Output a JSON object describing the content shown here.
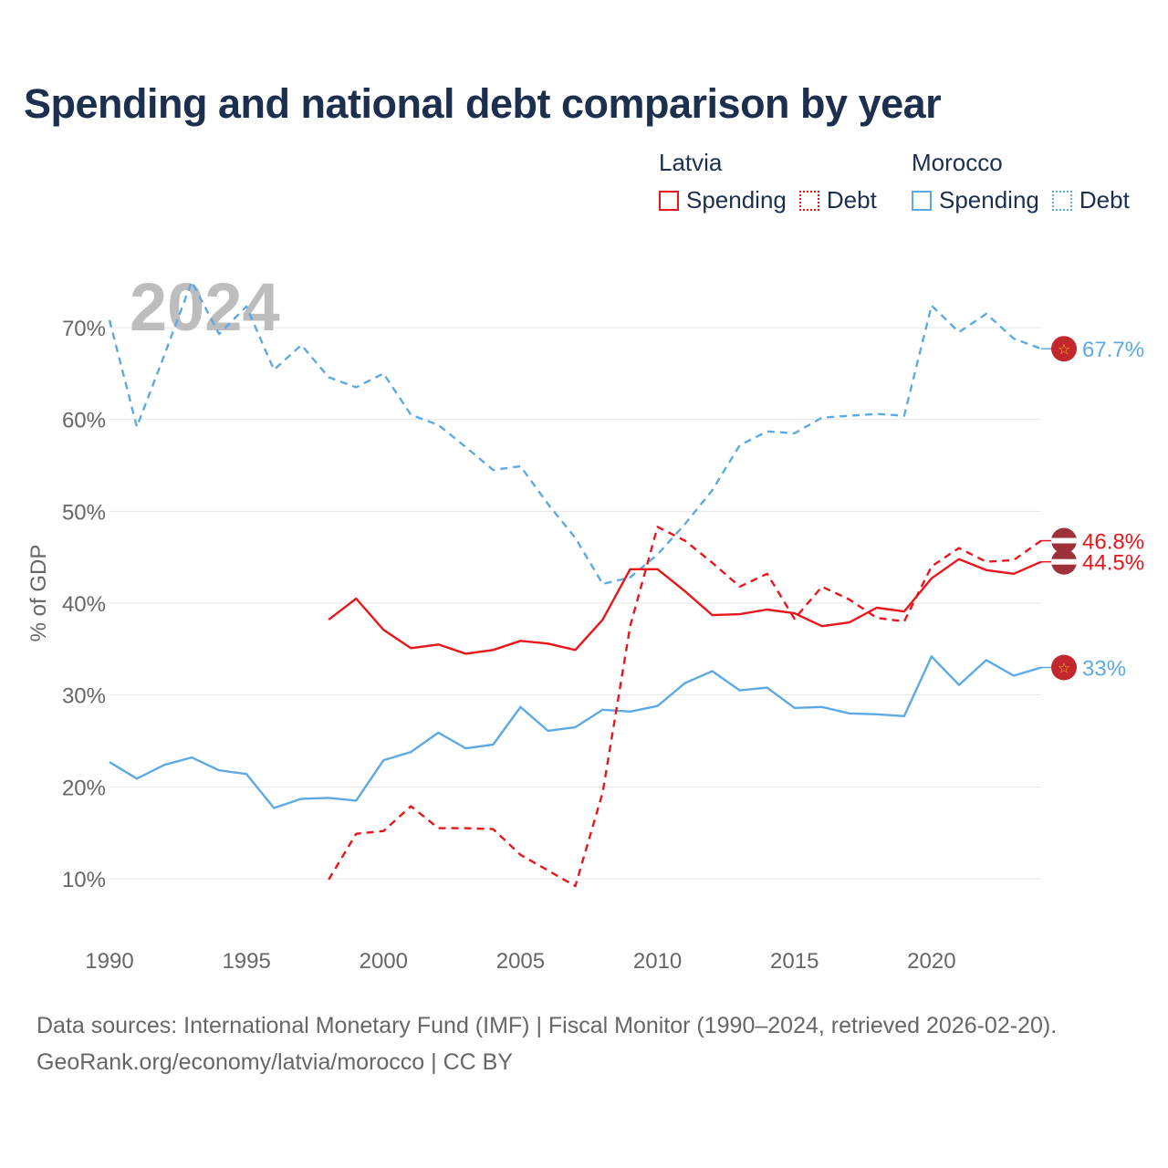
{
  "title": "Spending and national debt comparison by year",
  "legend": [
    {
      "country": "Latvia",
      "color": "#e8151b",
      "items": [
        {
          "label": "Spending",
          "style": "solid"
        },
        {
          "label": "Debt",
          "style": "dotted"
        }
      ]
    },
    {
      "country": "Morocco",
      "color": "#5da9e3",
      "items": [
        {
          "label": "Spending",
          "style": "solid"
        },
        {
          "label": "Debt",
          "style": "dotted"
        }
      ]
    }
  ],
  "year_watermark": "2024",
  "sources": [
    "Data sources: International Monetary Fund (IMF) | Fiscal Monitor (1990–2024, retrieved 2026-02-20).",
    "GeoRank.org/economy/latvia/morocco | CC BY"
  ],
  "chart_data": {
    "type": "line",
    "title": "Spending and national debt comparison by year",
    "xlabel": "",
    "ylabel": "% of GDP",
    "xlim": [
      1990,
      2024
    ],
    "ylim": [
      3,
      76
    ],
    "x_ticks": [
      1990,
      1995,
      2000,
      2005,
      2010,
      2015,
      2020
    ],
    "y_ticks": [
      10,
      20,
      30,
      40,
      50,
      60,
      70
    ],
    "y_tick_labels": [
      "10%",
      "20%",
      "30%",
      "40%",
      "50%",
      "60%",
      "70%"
    ],
    "grid": true,
    "series": [
      {
        "name": "Morocco Debt",
        "country": "Morocco",
        "metric": "Debt",
        "color": "#5da9e3",
        "dash": "dashed",
        "end_label": "67.7%",
        "flag": "morocco",
        "points": [
          [
            1990,
            70.8
          ],
          [
            1991,
            59.2
          ],
          [
            1992,
            67.0
          ],
          [
            1993,
            75.0
          ],
          [
            1994,
            69.3
          ],
          [
            1995,
            72.3
          ],
          [
            1996,
            65.4
          ],
          [
            1997,
            68.1
          ],
          [
            1998,
            64.6
          ],
          [
            1999,
            63.5
          ],
          [
            2000,
            65.0
          ],
          [
            2001,
            60.5
          ],
          [
            2002,
            59.4
          ],
          [
            2003,
            57.0
          ],
          [
            2004,
            54.5
          ],
          [
            2005,
            54.9
          ],
          [
            2006,
            50.8
          ],
          [
            2007,
            47.1
          ],
          [
            2008,
            42.1
          ],
          [
            2009,
            42.8
          ],
          [
            2010,
            45.3
          ],
          [
            2011,
            48.6
          ],
          [
            2012,
            52.3
          ],
          [
            2013,
            57.2
          ],
          [
            2014,
            58.7
          ],
          [
            2015,
            58.5
          ],
          [
            2016,
            60.2
          ],
          [
            2017,
            60.4
          ],
          [
            2018,
            60.6
          ],
          [
            2019,
            60.4
          ],
          [
            2020,
            72.4
          ],
          [
            2021,
            69.5
          ],
          [
            2022,
            71.5
          ],
          [
            2023,
            68.8
          ],
          [
            2024,
            67.7
          ]
        ]
      },
      {
        "name": "Morocco Spending",
        "country": "Morocco",
        "metric": "Spending",
        "color": "#5da9e3",
        "dash": "solid",
        "end_label": "33%",
        "flag": "morocco",
        "points": [
          [
            1990,
            22.7
          ],
          [
            1991,
            20.9
          ],
          [
            1992,
            22.4
          ],
          [
            1993,
            23.2
          ],
          [
            1994,
            21.8
          ],
          [
            1995,
            21.4
          ],
          [
            1996,
            17.7
          ],
          [
            1997,
            18.7
          ],
          [
            1998,
            18.8
          ],
          [
            1999,
            18.5
          ],
          [
            2000,
            22.9
          ],
          [
            2001,
            23.8
          ],
          [
            2002,
            25.9
          ],
          [
            2003,
            24.2
          ],
          [
            2004,
            24.6
          ],
          [
            2005,
            28.7
          ],
          [
            2006,
            26.1
          ],
          [
            2007,
            26.5
          ],
          [
            2008,
            28.4
          ],
          [
            2009,
            28.2
          ],
          [
            2010,
            28.8
          ],
          [
            2011,
            31.3
          ],
          [
            2012,
            32.6
          ],
          [
            2013,
            30.5
          ],
          [
            2014,
            30.8
          ],
          [
            2015,
            28.6
          ],
          [
            2016,
            28.7
          ],
          [
            2017,
            28.0
          ],
          [
            2018,
            27.9
          ],
          [
            2019,
            27.7
          ],
          [
            2020,
            34.2
          ],
          [
            2021,
            31.1
          ],
          [
            2022,
            33.8
          ],
          [
            2023,
            32.1
          ],
          [
            2024,
            33.0
          ]
        ]
      },
      {
        "name": "Latvia Debt",
        "country": "Latvia",
        "metric": "Debt",
        "color": "#e8151b",
        "dash": "dashed",
        "end_label": "46.8%",
        "flag": "latvia",
        "points": [
          [
            1998,
            9.9
          ],
          [
            1999,
            14.9
          ],
          [
            2000,
            15.2
          ],
          [
            2001,
            17.9
          ],
          [
            2002,
            15.5
          ],
          [
            2003,
            15.5
          ],
          [
            2004,
            15.4
          ],
          [
            2005,
            12.6
          ],
          [
            2006,
            10.9
          ],
          [
            2007,
            9.2
          ],
          [
            2008,
            19.4
          ],
          [
            2009,
            37.5
          ],
          [
            2010,
            48.3
          ],
          [
            2011,
            46.8
          ],
          [
            2012,
            44.4
          ],
          [
            2013,
            41.8
          ],
          [
            2014,
            43.2
          ],
          [
            2015,
            38.3
          ],
          [
            2016,
            41.8
          ],
          [
            2017,
            40.4
          ],
          [
            2018,
            38.4
          ],
          [
            2019,
            38.0
          ],
          [
            2020,
            44.0
          ],
          [
            2021,
            46.0
          ],
          [
            2022,
            44.5
          ],
          [
            2023,
            44.7
          ],
          [
            2024,
            46.8
          ]
        ]
      },
      {
        "name": "Latvia Spending",
        "country": "Latvia",
        "metric": "Spending",
        "color": "#e8151b",
        "dash": "solid",
        "end_label": "44.5%",
        "flag": "latvia",
        "points": [
          [
            1998,
            38.2
          ],
          [
            1999,
            40.5
          ],
          [
            2000,
            37.1
          ],
          [
            2001,
            35.1
          ],
          [
            2002,
            35.5
          ],
          [
            2003,
            34.5
          ],
          [
            2004,
            34.9
          ],
          [
            2005,
            35.9
          ],
          [
            2006,
            35.6
          ],
          [
            2007,
            34.9
          ],
          [
            2008,
            38.2
          ],
          [
            2009,
            43.7
          ],
          [
            2010,
            43.7
          ],
          [
            2011,
            41.3
          ],
          [
            2012,
            38.7
          ],
          [
            2013,
            38.8
          ],
          [
            2014,
            39.3
          ],
          [
            2015,
            38.9
          ],
          [
            2016,
            37.5
          ],
          [
            2017,
            37.9
          ],
          [
            2018,
            39.5
          ],
          [
            2019,
            39.1
          ],
          [
            2020,
            42.7
          ],
          [
            2021,
            44.8
          ],
          [
            2022,
            43.6
          ],
          [
            2023,
            43.2
          ],
          [
            2024,
            44.5
          ]
        ]
      }
    ]
  }
}
